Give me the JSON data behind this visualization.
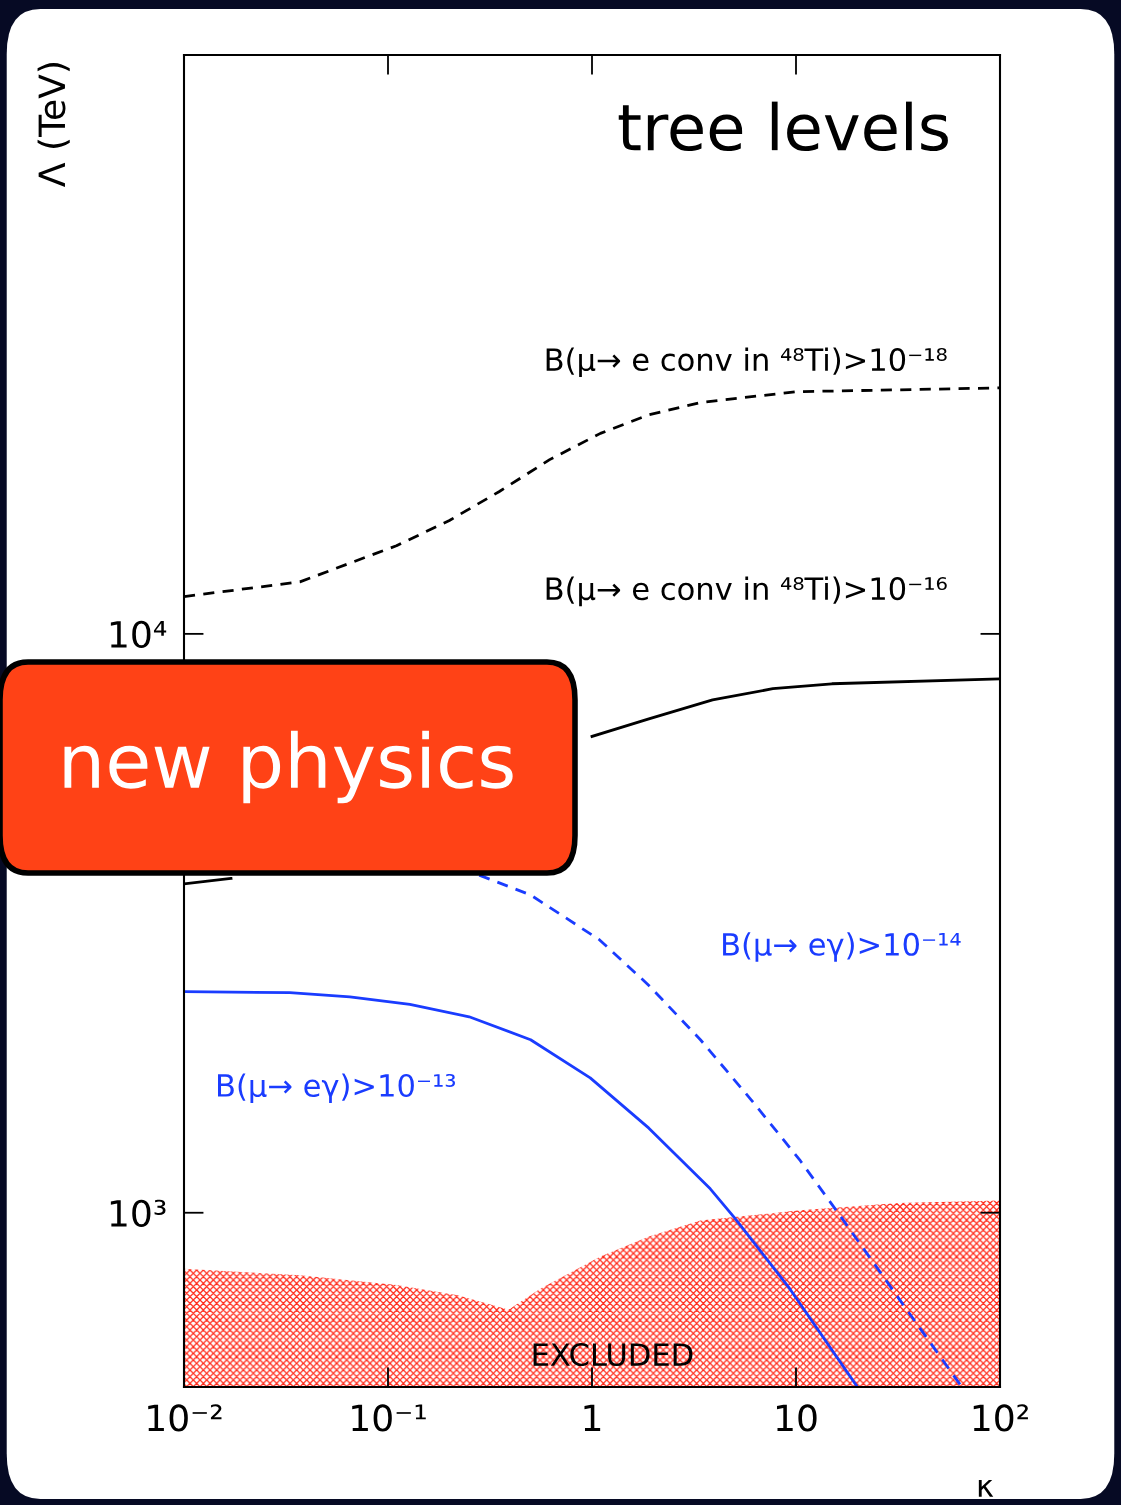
{
  "chart_data": {
    "type": "line",
    "title": "tree levels",
    "xlabel": "κ",
    "ylabel": "Λ (TeV)",
    "log": "xy",
    "xlim": [
      0.01,
      100
    ],
    "ylim": [
      500,
      100000
    ],
    "xticks": [
      {
        "value": 0.01,
        "label": "10⁻²"
      },
      {
        "value": 0.1,
        "label": "10⁻¹"
      },
      1,
      10,
      {
        "value": 100,
        "label": "10²"
      }
    ],
    "yticks": [
      {
        "value": 1000,
        "label": "10³"
      },
      {
        "value": 10000,
        "label": "10⁴"
      }
    ],
    "annotations": [
      "new physics"
    ],
    "series": [
      {
        "name": "B(μ→ e conv in ⁴⁸Ti)>10⁻¹⁸",
        "color": "#000000",
        "line_style": "dashed",
        "x": [
          0.01,
          0.037,
          0.11,
          0.2,
          0.35,
          0.62,
          1.1,
          1.9,
          3.4,
          10,
          100
        ],
        "values": [
          11600,
          12300,
          14200,
          15700,
          17600,
          20000,
          22200,
          23900,
          25100,
          26200,
          26600
        ]
      },
      {
        "name": "B(μ→ e conv in ⁴⁸Ti)>10⁻¹⁶",
        "color": "#000000",
        "line_style": "solid",
        "x": [
          0.01,
          0.017,
          0.1,
          1,
          1.9,
          3.9,
          7.7,
          15,
          100
        ],
        "values": [
          3700,
          3780,
          null,
          6650,
          7130,
          7690,
          8040,
          8200,
          8360
        ]
      },
      {
        "name": "B(μ→ eγ)>10⁻¹⁴",
        "color": "#1a3cff",
        "line_style": "dashed",
        "x": [
          0.28,
          0.5,
          1.09,
          1.9,
          3.4,
          6,
          10.5,
          16.4,
          32,
          65
        ],
        "values": [
          3830,
          3540,
          2960,
          2470,
          1990,
          1570,
          1230,
          990,
          710,
          500
        ]
      },
      {
        "name": "B(μ→ eγ)>10⁻¹³",
        "color": "#1a3cff",
        "line_style": "solid",
        "x": [
          0.01,
          0.033,
          0.065,
          0.128,
          0.25,
          0.5,
          0.98,
          1.9,
          3.8,
          5,
          9.3,
          20
        ],
        "values": [
          2410,
          2400,
          2360,
          2290,
          2180,
          1990,
          1710,
          1400,
          1100,
          980,
          740,
          500
        ]
      },
      {
        "name": "EXCLUDED",
        "type": "area",
        "color": "#ff2a1a",
        "x": [
          0.01,
          0.037,
          0.11,
          0.22,
          0.39,
          0.56,
          1.1,
          1.9,
          3.4,
          10.5,
          32,
          100
        ],
        "values": [
          800,
          780,
          750,
          720,
          680,
          740,
          840,
          910,
          970,
          1010,
          1040,
          1050
        ]
      }
    ]
  }
}
